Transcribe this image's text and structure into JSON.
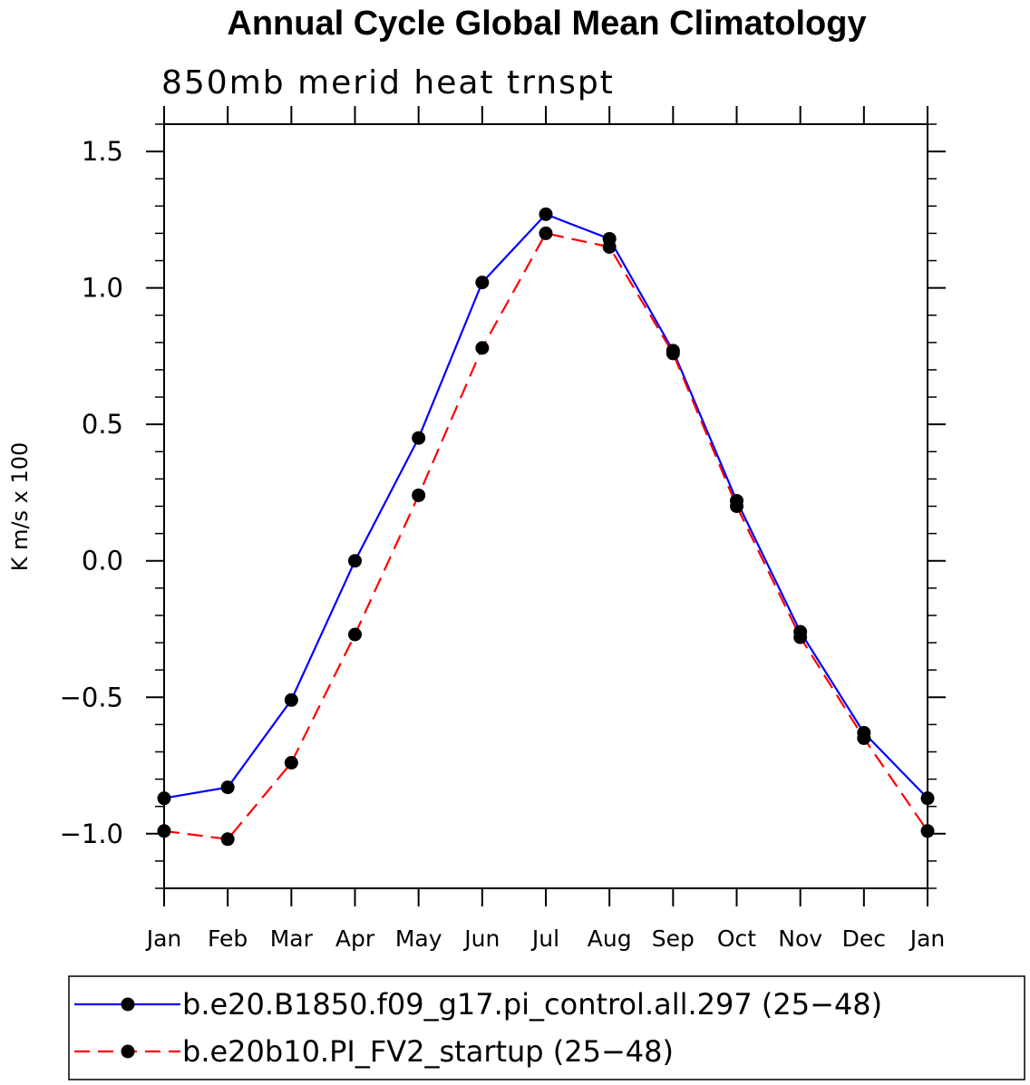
{
  "chart_data": {
    "type": "line",
    "title": "Annual Cycle Global Mean Climatology",
    "subtitle": "850mb merid heat trnspt",
    "xlabel": "",
    "ylabel": "K m/s x 100",
    "categories": [
      "Jan",
      "Feb",
      "Mar",
      "Apr",
      "May",
      "Jun",
      "Jul",
      "Aug",
      "Sep",
      "Oct",
      "Nov",
      "Dec",
      "Jan"
    ],
    "ylim": [
      -1.2,
      1.6
    ],
    "yticks": [
      -1.0,
      -0.5,
      0.0,
      0.5,
      1.0,
      1.5
    ],
    "ytick_labels": [
      "−1.0",
      "−0.5",
      "0.0",
      "0.5",
      "1.0",
      "1.5"
    ],
    "grid": false,
    "legend_position": "bottom",
    "series": [
      {
        "name": "b.e20.B1850.f09_g17.pi_control.all.297 (25−48)",
        "color": "#0000ff",
        "dash": "solid",
        "marker": "filled-circle",
        "values": [
          -0.87,
          -0.83,
          -0.51,
          0.0,
          0.45,
          1.02,
          1.27,
          1.18,
          0.77,
          0.22,
          -0.26,
          -0.63,
          -0.87
        ]
      },
      {
        "name": "b.e20b10.PI_FV2_startup (25−48)",
        "color": "#ff0000",
        "dash": "dashed",
        "marker": "filled-circle",
        "values": [
          -0.99,
          -1.02,
          -0.74,
          -0.27,
          0.24,
          0.78,
          1.2,
          1.15,
          0.76,
          0.2,
          -0.28,
          -0.65,
          -0.99
        ]
      }
    ]
  }
}
